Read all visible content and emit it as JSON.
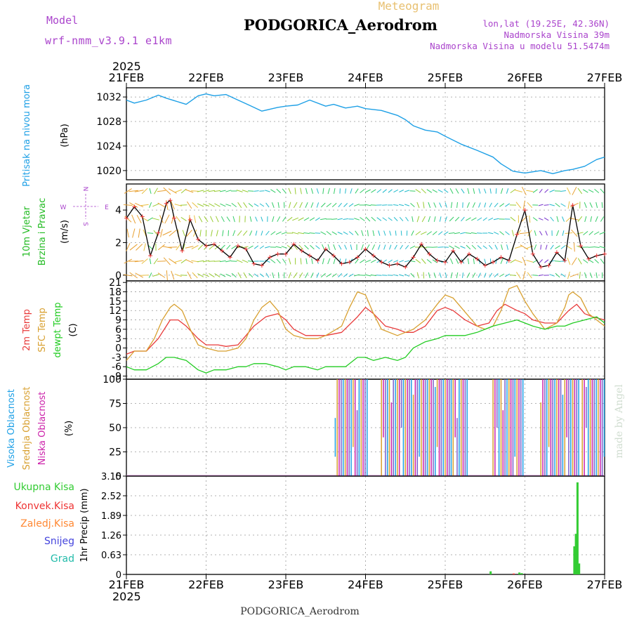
{
  "header": {
    "model_label": "Model",
    "model_name": "wrf-nmm_v3.9.1  e1km",
    "meteogram_label": "Meteogram",
    "station": "PODGORICA_Aerodrom",
    "lonlat": "lon,lat (19.25E, 42.36N)",
    "altitude": "Nadmorska Visina 39m",
    "model_altitude": "Nadmorska Visina u modelu 51.5474m",
    "footer_station": "PODGORICA_Aerodrom",
    "credit": "made by Angel"
  },
  "time_axis": {
    "year": "2025",
    "labels": [
      "21FEB",
      "22FEB",
      "23FEB",
      "24FEB",
      "25FEB",
      "26FEB",
      "27FEB"
    ]
  },
  "colors": {
    "pressure": "#1ea0e6",
    "wind_label": "#22bb22",
    "temp2m": "#e83a3a",
    "sfc": "#d8a030",
    "dewpt": "#22cc22",
    "cloud_high": "#1ea0e6",
    "cloud_mid": "#d8a030",
    "cloud_low": "#cc22aa",
    "precip_total": "#33cc33",
    "precip_conv": "#ee3333",
    "precip_strat": "#ff8833",
    "snow": "#4444dd",
    "hail": "#22bbaa",
    "meta": "#aa44cc"
  },
  "chart_data": [
    {
      "type": "line",
      "panel": "pressure",
      "ylabel_name": "Pritisak na nivou mora",
      "unit": "(hPa)",
      "yticks": [
        1020,
        1024,
        1028,
        1032
      ],
      "ylim": [
        1018.5,
        1033.5
      ],
      "grid": true,
      "series": [
        {
          "x": [
            0,
            0.1,
            0.25,
            0.4,
            0.5,
            0.6,
            0.75,
            0.9,
            1.0,
            1.1,
            1.25,
            1.4,
            1.55,
            1.7,
            1.8,
            1.9,
            2.0,
            2.15,
            2.3,
            2.5,
            2.6,
            2.75,
            2.9,
            3.0,
            3.2,
            3.4,
            3.5,
            3.6,
            3.75,
            3.9,
            4.0,
            4.2,
            4.4,
            4.6,
            4.7,
            4.85,
            5.0,
            5.2,
            5.35,
            5.5,
            5.6,
            5.75,
            5.9,
            6.0
          ],
          "y": [
            1031.5,
            1031,
            1031.5,
            1032.3,
            1031.8,
            1031.4,
            1030.8,
            1032.2,
            1032.5,
            1032.2,
            1032.4,
            1031.5,
            1030.6,
            1029.7,
            1030.0,
            1030.3,
            1030.5,
            1030.7,
            1031.5,
            1030.5,
            1030.8,
            1030.2,
            1030.5,
            1030.1,
            1029.8,
            1029.0,
            1028.3,
            1027.3,
            1026.6,
            1026.3,
            1025.6,
            1024.3,
            1023.3,
            1022.2,
            1021.1,
            1019.9,
            1019.6,
            1020.0,
            1019.5,
            1020.0,
            1020.2,
            1020.7,
            1021.8,
            1022.2
          ]
        }
      ]
    },
    {
      "type": "line",
      "panel": "wind",
      "ylabel_name": "10m Vjetar",
      "ylabel_sub": "Brzina i Pravac",
      "unit": "(m/s)",
      "compass": [
        "N",
        "E",
        "S",
        "W"
      ],
      "yticks": [
        0,
        2,
        4
      ],
      "ylim": [
        -0.35,
        5.6
      ],
      "grid": true,
      "series": [
        {
          "name": "brzina",
          "x": [
            0,
            0.1,
            0.2,
            0.3,
            0.4,
            0.5,
            0.55,
            0.6,
            0.7,
            0.8,
            0.9,
            1.0,
            1.1,
            1.2,
            1.3,
            1.4,
            1.5,
            1.6,
            1.7,
            1.8,
            1.9,
            2.0,
            2.1,
            2.2,
            2.3,
            2.4,
            2.5,
            2.6,
            2.7,
            2.8,
            2.9,
            3.0,
            3.1,
            3.2,
            3.3,
            3.4,
            3.5,
            3.6,
            3.7,
            3.8,
            3.9,
            4.0,
            4.1,
            4.2,
            4.3,
            4.4,
            4.5,
            4.6,
            4.7,
            4.8,
            4.9,
            5.0,
            5.1,
            5.2,
            5.3,
            5.4,
            5.5,
            5.6,
            5.7,
            5.8,
            5.9,
            6.0
          ],
          "y": [
            3.5,
            4.2,
            3.6,
            1.2,
            2.6,
            4.4,
            4.6,
            3.5,
            1.5,
            3.4,
            2.2,
            1.8,
            1.9,
            1.5,
            1.1,
            1.8,
            1.6,
            0.7,
            0.6,
            1.1,
            1.3,
            1.3,
            1.9,
            1.5,
            1.2,
            0.9,
            1.6,
            1.2,
            0.7,
            0.8,
            1.1,
            1.6,
            1.2,
            0.8,
            0.6,
            0.7,
            0.5,
            1.1,
            1.9,
            1.3,
            0.9,
            0.8,
            1.5,
            0.8,
            1.3,
            1.0,
            0.6,
            0.8,
            1.1,
            0.9,
            2.5,
            4.0,
            1.3,
            0.5,
            0.6,
            1.4,
            0.9,
            4.3,
            1.8,
            1.0,
            1.2,
            1.3
          ]
        }
      ]
    },
    {
      "type": "line",
      "panel": "temperature",
      "ylabel_names": [
        "2m Temp",
        "SFC Temp",
        "dewpt Temp"
      ],
      "unit": "(C)",
      "yticks": [
        -9,
        -6,
        -3,
        0,
        3,
        6,
        9,
        12,
        15,
        18,
        21
      ],
      "ylim": [
        -10,
        21.5
      ],
      "grid": true,
      "series": [
        {
          "name": "2m Temp",
          "x": [
            0,
            0.1,
            0.25,
            0.4,
            0.5,
            0.55,
            0.65,
            0.75,
            0.9,
            1.0,
            1.15,
            1.25,
            1.4,
            1.5,
            1.6,
            1.75,
            1.9,
            2.0,
            2.1,
            2.25,
            2.35,
            2.5,
            2.7,
            2.9,
            3.0,
            3.1,
            3.25,
            3.4,
            3.5,
            3.6,
            3.75,
            3.9,
            4.0,
            4.1,
            4.25,
            4.4,
            4.55,
            4.65,
            4.75,
            4.9,
            5.0,
            5.1,
            5.25,
            5.4,
            5.55,
            5.65,
            5.75,
            5.85,
            6.0
          ],
          "y": [
            -2,
            -1,
            -1,
            3,
            7,
            9,
            9,
            7,
            3,
            1,
            1,
            0.5,
            1,
            4,
            7,
            10,
            11,
            9,
            6,
            4,
            4,
            4,
            5,
            10,
            13,
            11,
            7,
            6,
            5,
            5,
            7,
            12,
            13,
            12,
            9,
            7,
            8,
            12,
            14,
            12,
            11,
            9,
            8,
            8,
            12,
            14,
            11,
            10,
            9
          ]
        },
        {
          "name": "SFC Temp",
          "x": [
            0,
            0.1,
            0.25,
            0.35,
            0.45,
            0.55,
            0.6,
            0.7,
            0.8,
            0.9,
            1.0,
            1.15,
            1.25,
            1.4,
            1.5,
            1.6,
            1.7,
            1.8,
            1.9,
            2.0,
            2.1,
            2.25,
            2.4,
            2.5,
            2.7,
            2.8,
            2.9,
            3.0,
            3.1,
            3.2,
            3.4,
            3.5,
            3.6,
            3.75,
            3.9,
            4.0,
            4.1,
            4.2,
            4.4,
            4.5,
            4.6,
            4.7,
            4.8,
            4.9,
            5.0,
            5.1,
            5.25,
            5.4,
            5.5,
            5.55,
            5.6,
            5.7,
            5.8,
            5.9,
            6.0
          ],
          "y": [
            -4,
            -1,
            -1,
            3,
            9,
            13,
            14,
            12,
            6,
            1,
            0,
            -1,
            -1,
            0,
            3,
            9,
            13,
            15,
            12,
            6,
            4,
            3,
            3,
            4,
            7,
            13,
            18,
            17,
            11,
            6,
            4,
            5,
            6,
            9,
            14,
            17,
            16,
            13,
            7,
            6,
            7,
            12,
            19,
            20,
            15,
            11,
            6,
            8,
            13,
            17,
            18,
            16,
            11,
            9,
            7
          ]
        },
        {
          "name": "dewpt Temp",
          "x": [
            0,
            0.1,
            0.25,
            0.4,
            0.5,
            0.6,
            0.75,
            0.9,
            1.0,
            1.1,
            1.25,
            1.4,
            1.5,
            1.6,
            1.75,
            1.9,
            2.0,
            2.1,
            2.25,
            2.4,
            2.5,
            2.6,
            2.75,
            2.9,
            3.0,
            3.1,
            3.25,
            3.4,
            3.5,
            3.6,
            3.75,
            3.9,
            4.0,
            4.1,
            4.25,
            4.4,
            4.5,
            4.6,
            4.75,
            4.9,
            5.0,
            5.1,
            5.25,
            5.4,
            5.5,
            5.6,
            5.75,
            5.9,
            6.0
          ],
          "y": [
            -6,
            -7,
            -7,
            -5,
            -3,
            -3,
            -4,
            -7,
            -8,
            -7,
            -7,
            -6,
            -6,
            -5,
            -5,
            -6,
            -7,
            -6,
            -6,
            -7,
            -6,
            -6,
            -6,
            -3,
            -3,
            -4,
            -3,
            -4,
            -3,
            0,
            2,
            3,
            4,
            4,
            4,
            5,
            6,
            7,
            8,
            9,
            8,
            7,
            6,
            7,
            7,
            8,
            9,
            10,
            8
          ]
        }
      ]
    },
    {
      "type": "bar",
      "panel": "cloud",
      "ylabel_names": [
        "Visoka Oblacnost",
        "Srednja Oblacnost",
        "Niska Oblacnost"
      ],
      "unit": "(%)",
      "yticks": [
        0,
        25,
        50,
        75,
        100
      ],
      "ylim": [
        0,
        100
      ],
      "grid": true,
      "cloudy_periods": [
        [
          2.62,
          3.02
        ],
        [
          3.2,
          4.3
        ],
        [
          4.6,
          5.0
        ],
        [
          5.2,
          5.7
        ],
        [
          5.72,
          6.0
        ]
      ]
    },
    {
      "type": "bar",
      "panel": "precip",
      "ylabel_names": [
        "Ukupna Kisa",
        "Konvek.Kisa",
        "Zaledj.Kisa",
        "Snijeg",
        "Grad"
      ],
      "unit": "1hr Precip (mm)",
      "yticks": [
        0,
        0.63,
        1.26,
        1.89,
        2.52,
        3.15
      ],
      "ylim": [
        0,
        3.15
      ],
      "grid": true,
      "series": [
        {
          "name": "Ukupna Kisa",
          "x": [
            4.57,
            4.93,
            4.96,
            5.62,
            5.64,
            5.66,
            5.68
          ],
          "y": [
            0.1,
            0.06,
            0.04,
            0.9,
            1.3,
            2.95,
            0.35
          ]
        },
        {
          "name": "Konvek.Kisa",
          "x": [
            4.86
          ],
          "y": [
            0.03
          ]
        }
      ]
    }
  ]
}
